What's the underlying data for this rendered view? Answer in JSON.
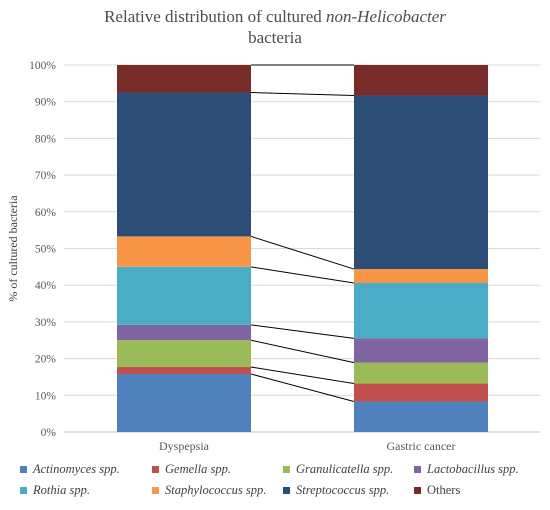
{
  "title": {
    "prefix": "Relative distribution  of cultured ",
    "italic": "non-Helicobacter",
    "line2": "bacteria"
  },
  "chart_data": {
    "type": "bar",
    "stacked": true,
    "percent": true,
    "categories": [
      "Dyspepsia",
      "Gastric cancer"
    ],
    "ylabel": "% of  cultured bacteria",
    "ylim": [
      0,
      100
    ],
    "yticks": [
      "0%",
      "10%",
      "20%",
      "30%",
      "40%",
      "50%",
      "60%",
      "70%",
      "80%",
      "90%",
      "100%"
    ],
    "grid": true,
    "legend_position": "bottom",
    "series": [
      {
        "name": "Actinomyces spp.",
        "values": [
          15.8,
          8.3
        ],
        "color": "#4f81bd",
        "italic": true
      },
      {
        "name": "Gemella spp.",
        "values": [
          1.9,
          4.9
        ],
        "color": "#c0504d",
        "italic": true
      },
      {
        "name": "Granulicatella spp.",
        "values": [
          7.3,
          5.7
        ],
        "color": "#9bbb59",
        "italic": true
      },
      {
        "name": "Lactobacillus spp.",
        "values": [
          4.2,
          6.6
        ],
        "color": "#8064a2",
        "italic": true
      },
      {
        "name": "Rothia spp.",
        "values": [
          15.8,
          15.1
        ],
        "color": "#4bacc6",
        "italic": true
      },
      {
        "name": "Staphylococcus spp.",
        "values": [
          8.3,
          3.8
        ],
        "color": "#f79646",
        "italic": true
      },
      {
        "name": "Streptococcus spp.",
        "values": [
          39.2,
          47.3
        ],
        "color": "#2c4d75",
        "italic": true
      },
      {
        "name": "Others",
        "values": [
          7.5,
          8.3
        ],
        "color": "#772c2a",
        "italic": false
      }
    ]
  }
}
